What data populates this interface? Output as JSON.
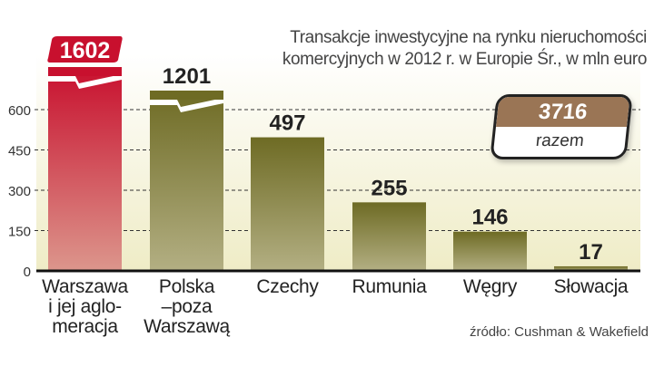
{
  "chart_data": {
    "type": "bar",
    "title": "Transakcje inwestycyjne na rynku nieruchomości komercyjnych w 2012 r. w Europie Śr., w mln euro",
    "title_lines": [
      "Transakcje inwestycyjne na rynku nieruchomości",
      "komercyjnych w 2012 r. w Europie Śr., w mln euro"
    ],
    "categories": [
      [
        "Warszawa",
        "i jej aglo-",
        "meracja"
      ],
      [
        "Polska",
        "–poza",
        "Warszawą"
      ],
      [
        "Czechy"
      ],
      [
        "Rumunia"
      ],
      [
        "Węgry"
      ],
      [
        "Słowacja"
      ]
    ],
    "values": [
      1602,
      1201,
      497,
      255,
      146,
      17
    ],
    "value_labels": [
      "1602",
      "1201",
      "497",
      "255",
      "146",
      "17"
    ],
    "broken_bars": [
      0,
      1
    ],
    "ylim": [
      0,
      600
    ],
    "yticks": [
      "0",
      "150",
      "300",
      "450",
      "600"
    ],
    "grid": true,
    "colors": {
      "highlight": "#c8102e",
      "bars": "#6e6b24",
      "total": "#9a7555"
    },
    "xlabel": "",
    "ylabel": ""
  },
  "total": {
    "value": "3716",
    "label": "razem"
  },
  "source": "źródło: Cushman & Wakefield"
}
